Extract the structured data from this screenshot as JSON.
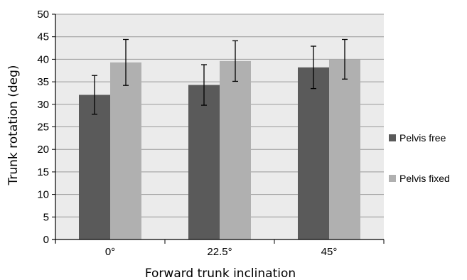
{
  "chart_data": {
    "type": "bar",
    "categories": [
      "0°",
      "22.5°",
      "45°"
    ],
    "series": [
      {
        "name": "Pelvis free",
        "color": "#5a5a5a",
        "values": [
          32.1,
          34.3,
          38.2
        ],
        "errors": [
          4.3,
          4.5,
          4.7
        ]
      },
      {
        "name": "Pelvis fixed",
        "color": "#b0b0b0",
        "values": [
          39.3,
          39.6,
          40.0
        ],
        "errors": [
          5.1,
          4.5,
          4.4
        ]
      }
    ],
    "xlabel": "Forward trunk inclination",
    "ylabel": "Trunk rotation (deg)",
    "ylim": [
      0,
      50
    ],
    "yticks": [
      0,
      5,
      10,
      15,
      20,
      25,
      30,
      35,
      40,
      45,
      50
    ],
    "grid": true,
    "legend": "right",
    "plot_background": "#ebebeb",
    "grid_color": "#9a9a9a"
  },
  "legend": {
    "items": [
      "Pelvis free",
      "Pelvis fixed"
    ]
  }
}
